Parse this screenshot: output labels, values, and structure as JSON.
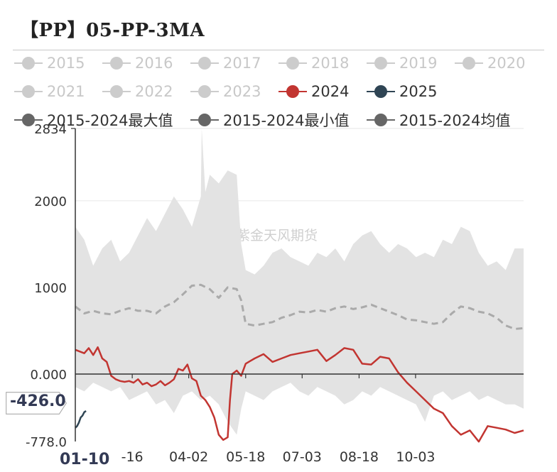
{
  "title": "【PP】05-PP-3MA",
  "watermark": "紫金天风期货",
  "legend": [
    {
      "label": "2015",
      "color": "#cccccc",
      "active": false
    },
    {
      "label": "2016",
      "color": "#cccccc",
      "active": false
    },
    {
      "label": "2017",
      "color": "#cccccc",
      "active": false
    },
    {
      "label": "2018",
      "color": "#cccccc",
      "active": false
    },
    {
      "label": "2019",
      "color": "#cccccc",
      "active": false
    },
    {
      "label": "2020",
      "color": "#cccccc",
      "active": false
    },
    {
      "label": "2021",
      "color": "#cccccc",
      "active": false
    },
    {
      "label": "2022",
      "color": "#cccccc",
      "active": false
    },
    {
      "label": "2023",
      "color": "#cccccc",
      "active": false
    },
    {
      "label": "2024",
      "color": "#c23531",
      "active": true
    },
    {
      "label": "2025",
      "color": "#2f4554",
      "active": true
    },
    {
      "label": "2015-2024最大值",
      "color": "#666666",
      "active": true
    },
    {
      "label": "2015-2024最小值",
      "color": "#666666",
      "active": true
    },
    {
      "label": "2015-2024均值",
      "color": "#666666",
      "active": true
    }
  ],
  "y_axis_pointer_label": "-426.0",
  "x_axis_pointer_label": "01-10",
  "chart_data": {
    "type": "line",
    "title": "【PP】05-PP-3MA",
    "ylim": [
      -778,
      2834
    ],
    "y_ticks": [
      "2834",
      "2000",
      "1000",
      "0.000",
      "-778.0"
    ],
    "y_tick_values": [
      2834,
      2000,
      1000,
      0,
      -778
    ],
    "x_tick_labels": [
      "-16",
      "04-02",
      "05-18",
      "07-03",
      "08-18",
      "10-03"
    ],
    "x_tick_positions": [
      0.127,
      0.253,
      0.38,
      0.506,
      0.633,
      0.759
    ],
    "series": [
      {
        "name": "2015-2024最大值",
        "role": "band_upper",
        "x": [
          0.0,
          0.02,
          0.04,
          0.06,
          0.08,
          0.1,
          0.12,
          0.14,
          0.16,
          0.18,
          0.2,
          0.22,
          0.24,
          0.26,
          0.28,
          0.282,
          0.29,
          0.3,
          0.32,
          0.34,
          0.36,
          0.37,
          0.38,
          0.4,
          0.42,
          0.44,
          0.46,
          0.48,
          0.5,
          0.52,
          0.54,
          0.56,
          0.58,
          0.6,
          0.62,
          0.64,
          0.66,
          0.68,
          0.7,
          0.72,
          0.74,
          0.76,
          0.78,
          0.8,
          0.82,
          0.84,
          0.86,
          0.88,
          0.9,
          0.92,
          0.94,
          0.96,
          0.98,
          1.0
        ],
        "values": [
          1700,
          1550,
          1250,
          1450,
          1550,
          1300,
          1400,
          1600,
          1800,
          1650,
          1850,
          2050,
          1900,
          1700,
          2050,
          2834,
          2100,
          2300,
          2200,
          2350,
          2300,
          1500,
          1200,
          1150,
          1250,
          1400,
          1450,
          1350,
          1300,
          1250,
          1400,
          1350,
          1450,
          1300,
          1500,
          1600,
          1650,
          1500,
          1400,
          1500,
          1450,
          1350,
          1400,
          1350,
          1550,
          1500,
          1700,
          1650,
          1400,
          1250,
          1300,
          1200,
          1450,
          1450
        ]
      },
      {
        "name": "2015-2024最小值",
        "role": "band_lower",
        "x": [
          0.0,
          0.02,
          0.04,
          0.06,
          0.08,
          0.1,
          0.12,
          0.14,
          0.16,
          0.18,
          0.2,
          0.22,
          0.24,
          0.26,
          0.28,
          0.3,
          0.32,
          0.34,
          0.36,
          0.37,
          0.38,
          0.4,
          0.42,
          0.44,
          0.46,
          0.48,
          0.5,
          0.52,
          0.54,
          0.56,
          0.58,
          0.6,
          0.62,
          0.64,
          0.66,
          0.68,
          0.7,
          0.72,
          0.74,
          0.76,
          0.78,
          0.8,
          0.82,
          0.84,
          0.86,
          0.88,
          0.9,
          0.92,
          0.94,
          0.96,
          0.98,
          1.0
        ],
        "values": [
          -150,
          -200,
          -100,
          -150,
          -200,
          -150,
          -300,
          -250,
          -200,
          -350,
          -300,
          -450,
          -250,
          -200,
          -300,
          -250,
          -350,
          -550,
          -700,
          -400,
          -200,
          -250,
          -300,
          -200,
          -150,
          -100,
          -200,
          -250,
          -150,
          -200,
          -250,
          -350,
          -300,
          -200,
          -250,
          -150,
          -200,
          -250,
          -300,
          -350,
          -550,
          -250,
          -200,
          -300,
          -250,
          -200,
          -300,
          -250,
          -300,
          -350,
          -350,
          -400
        ]
      },
      {
        "name": "2015-2024均值",
        "role": "mean",
        "x": [
          0.0,
          0.02,
          0.04,
          0.06,
          0.08,
          0.1,
          0.12,
          0.14,
          0.16,
          0.18,
          0.2,
          0.22,
          0.24,
          0.26,
          0.28,
          0.3,
          0.32,
          0.34,
          0.36,
          0.37,
          0.38,
          0.4,
          0.42,
          0.44,
          0.46,
          0.48,
          0.5,
          0.52,
          0.54,
          0.56,
          0.58,
          0.6,
          0.62,
          0.64,
          0.66,
          0.68,
          0.7,
          0.72,
          0.74,
          0.76,
          0.78,
          0.8,
          0.82,
          0.84,
          0.86,
          0.88,
          0.9,
          0.92,
          0.94,
          0.96,
          0.98,
          1.0
        ],
        "values": [
          780,
          700,
          730,
          700,
          690,
          730,
          760,
          730,
          730,
          700,
          780,
          830,
          920,
          1020,
          1030,
          980,
          880,
          1000,
          980,
          850,
          580,
          560,
          580,
          600,
          650,
          680,
          720,
          710,
          740,
          720,
          760,
          780,
          750,
          770,
          800,
          760,
          720,
          680,
          630,
          620,
          600,
          580,
          600,
          700,
          780,
          760,
          720,
          700,
          650,
          560,
          520,
          530
        ]
      },
      {
        "name": "2024",
        "role": "line",
        "x": [
          0.0,
          0.02,
          0.03,
          0.04,
          0.05,
          0.06,
          0.07,
          0.08,
          0.09,
          0.1,
          0.11,
          0.12,
          0.13,
          0.14,
          0.15,
          0.16,
          0.17,
          0.18,
          0.19,
          0.2,
          0.21,
          0.22,
          0.23,
          0.24,
          0.25,
          0.26,
          0.27,
          0.28,
          0.29,
          0.3,
          0.31,
          0.32,
          0.33,
          0.34,
          0.345,
          0.35,
          0.36,
          0.37,
          0.38,
          0.39,
          0.4,
          0.42,
          0.44,
          0.46,
          0.48,
          0.5,
          0.52,
          0.54,
          0.56,
          0.58,
          0.6,
          0.62,
          0.64,
          0.66,
          0.68,
          0.7,
          0.72,
          0.74,
          0.76,
          0.78,
          0.8,
          0.82,
          0.84,
          0.86,
          0.88,
          0.9,
          0.92,
          0.94,
          0.96,
          0.98,
          1.0
        ],
        "values": [
          280,
          240,
          300,
          220,
          310,
          180,
          140,
          -20,
          -60,
          -80,
          -90,
          -80,
          -100,
          -60,
          -120,
          -100,
          -140,
          -120,
          -80,
          -130,
          -100,
          -60,
          60,
          40,
          110,
          -50,
          -80,
          -250,
          -300,
          -380,
          -500,
          -700,
          -760,
          -730,
          -300,
          0,
          40,
          -20,
          120,
          150,
          180,
          230,
          140,
          180,
          220,
          240,
          260,
          280,
          150,
          220,
          300,
          280,
          120,
          110,
          200,
          180,
          20,
          -100,
          -200,
          -300,
          -400,
          -450,
          -600,
          -700,
          -650,
          -780,
          -600,
          -620,
          -640,
          -680,
          -650
        ]
      },
      {
        "name": "2025",
        "role": "line",
        "x": [
          0.0,
          0.004,
          0.008,
          0.012,
          0.016,
          0.02,
          0.024
        ],
        "values": [
          -620,
          -600,
          -560,
          -500,
          -480,
          -440,
          -426
        ]
      }
    ]
  }
}
